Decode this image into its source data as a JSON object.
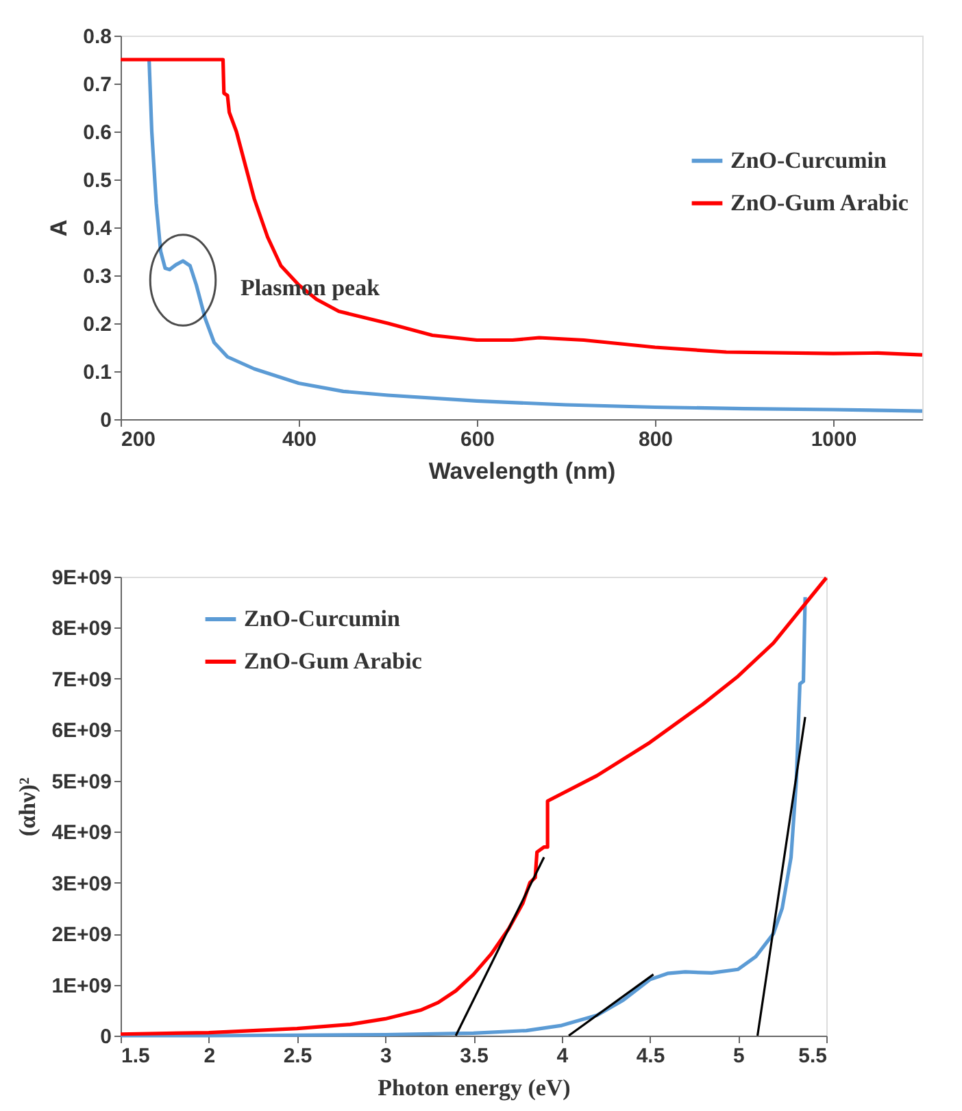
{
  "chart_data": [
    {
      "type": "line",
      "xlabel": "Wavelength (nm)",
      "ylabel": "A",
      "xlim": [
        200,
        1100
      ],
      "xticks": [
        200,
        400,
        600,
        800,
        1000
      ],
      "ylim": [
        0,
        0.8
      ],
      "yticks": [
        0,
        0.1,
        0.2,
        0.3,
        0.4,
        0.5,
        0.6,
        0.7,
        0.8
      ],
      "grid": false,
      "legend": "right",
      "line_style": "solid",
      "marker": "none",
      "annotations": [
        {
          "text": "Plasmon peak",
          "x": 270,
          "y": 0.33
        }
      ],
      "series": [
        {
          "name": "ZnO-Curcumin",
          "color": "#5b9bd5",
          "x": [
            232,
            235,
            240,
            245,
            250,
            255,
            262,
            270,
            278,
            285,
            295,
            305,
            320,
            350,
            400,
            450,
            500,
            600,
            700,
            800,
            900,
            1000,
            1100
          ],
          "values": [
            0.75,
            0.6,
            0.45,
            0.35,
            0.315,
            0.312,
            0.322,
            0.33,
            0.32,
            0.28,
            0.21,
            0.16,
            0.13,
            0.105,
            0.075,
            0.058,
            0.05,
            0.038,
            0.03,
            0.025,
            0.022,
            0.02,
            0.017
          ]
        },
        {
          "name": "ZnO-Gum Arabic",
          "color": "#ff0000",
          "x": [
            200,
            315,
            316,
            320,
            322,
            330,
            340,
            350,
            365,
            380,
            400,
            420,
            445,
            500,
            550,
            600,
            640,
            670,
            720,
            800,
            880,
            1000,
            1050,
            1100
          ],
          "values": [
            0.75,
            0.75,
            0.68,
            0.675,
            0.64,
            0.6,
            0.53,
            0.46,
            0.38,
            0.32,
            0.28,
            0.25,
            0.225,
            0.2,
            0.175,
            0.165,
            0.165,
            0.17,
            0.165,
            0.15,
            0.14,
            0.137,
            0.138,
            0.134
          ]
        }
      ]
    },
    {
      "type": "line",
      "xlabel": "Photon energy (eV)",
      "ylabel": "(αhν)²",
      "xlim": [
        1.5,
        5.5
      ],
      "xticks": [
        1.5,
        2,
        2.5,
        3,
        3.5,
        4,
        4.5,
        5,
        5.5
      ],
      "ylim": [
        0,
        9000000000
      ],
      "yticks": [
        0,
        {
          "value": 1000000000,
          "label": "1E+09"
        },
        {
          "value": 2000000000,
          "label": "2E+09"
        },
        {
          "value": 3000000000,
          "label": "3E+09"
        },
        {
          "value": 4000000000,
          "label": "4E+09"
        },
        {
          "value": 5000000000,
          "label": "5E+09"
        },
        {
          "value": 6000000000,
          "label": "6E+09"
        },
        {
          "value": 7000000000,
          "label": "7E+09"
        },
        {
          "value": 8000000000,
          "label": "8E+09"
        },
        {
          "value": 9000000000,
          "label": "9E+09"
        }
      ],
      "grid": false,
      "legend": "top left",
      "line_style": "solid",
      "marker": "none",
      "series": [
        {
          "name": "ZnO-Curcumin",
          "color": "#5b9bd5",
          "x": [
            1.5,
            2,
            2.5,
            3,
            3.5,
            3.8,
            4,
            4.2,
            4.35,
            4.5,
            4.6,
            4.7,
            4.85,
            5.0,
            5.1,
            5.2,
            5.25,
            5.3,
            5.33,
            5.35,
            5.37,
            5.38
          ],
          "values": [
            0,
            0,
            10000000,
            20000000,
            50000000,
            100000000,
            200000000,
            400000000,
            700000000,
            1100000000,
            1220000000,
            1250000000,
            1230000000,
            1300000000,
            1550000000,
            2000000000,
            2500000000,
            3500000000,
            5000000000,
            6900000000,
            6950000000,
            8600000000
          ]
        },
        {
          "name": "ZnO-Gum Arabic",
          "color": "#ff0000",
          "x": [
            1.5,
            2,
            2.5,
            2.8,
            3.0,
            3.2,
            3.3,
            3.4,
            3.5,
            3.6,
            3.7,
            3.78,
            3.82,
            3.85,
            3.86,
            3.9,
            3.92,
            3.92,
            4.2,
            4.5,
            4.8,
            5.0,
            5.2,
            5.5
          ],
          "values": [
            30000000,
            60000000,
            140000000,
            220000000,
            330000000,
            500000000,
            650000000,
            880000000,
            1200000000,
            1600000000,
            2100000000,
            2600000000,
            3000000000,
            3100000000,
            3600000000,
            3700000000,
            3700000000,
            4600000000,
            5100000000,
            5750000000,
            6500000000,
            7050000000,
            7700000000,
            8980000000
          ]
        },
        {
          "color": "#000000",
          "x": [
            3.4,
            3.9
          ],
          "values": [
            0,
            3500000000
          ]
        },
        {
          "color": "#000000",
          "x": [
            4.04,
            4.52
          ],
          "values": [
            0,
            1200000000
          ]
        },
        {
          "color": "#000000",
          "x": [
            5.11,
            5.38
          ],
          "values": [
            0,
            6250000000
          ]
        }
      ]
    }
  ]
}
